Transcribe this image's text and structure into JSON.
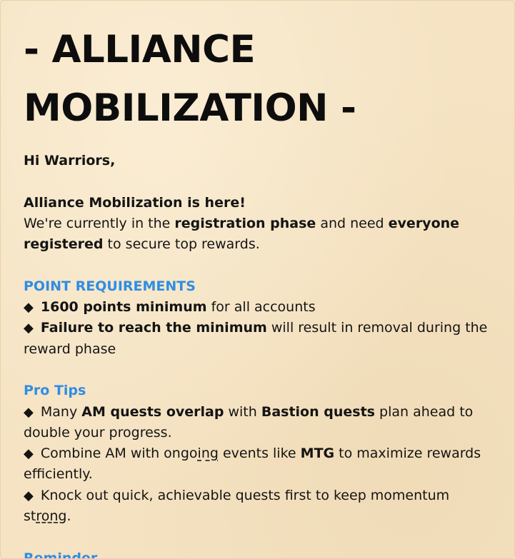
{
  "title_line1": "- ALLIANCE",
  "title_line2": "MOBILIZATION -",
  "greeting": "Hi Warriors,",
  "intro": {
    "headline": "Alliance Mobilization is here!",
    "t1": "We're currently in the ",
    "b1": "registration phase",
    "t2": " and need ",
    "b2": "everyone registered",
    "t3": " to secure top rewards."
  },
  "point_requirements": {
    "heading": "POINT REQUIREMENTS",
    "bullet": "◆",
    "item1_bold": "1600 points minimum",
    "item1_text": " for all accounts",
    "item2_bold": "Failure to reach the minimum",
    "item2_text": " will result in removal during the reward phase"
  },
  "pro_tips": {
    "heading": "Pro Tips",
    "bullet": "◆",
    "tip1_t1": "Many ",
    "tip1_b1": "AM quests overlap",
    "tip1_t2": " with ",
    "tip1_b2": "Bastion quests",
    "tip1_t3": " plan ahead to double your progress.",
    "tip2_t1": "Combine AM with ongo",
    "tip2_sq": "ing",
    "tip2_t2": " events like ",
    "tip2_b1": "MTG",
    "tip2_t3": " to maximize rewards efficiently.",
    "tip3_t1": "Knock out quick, achievable quests first to keep momentum st",
    "tip3_sq": "ron",
    "tip3_t2": "g."
  },
  "reminder": {
    "heading": "Reminder"
  }
}
